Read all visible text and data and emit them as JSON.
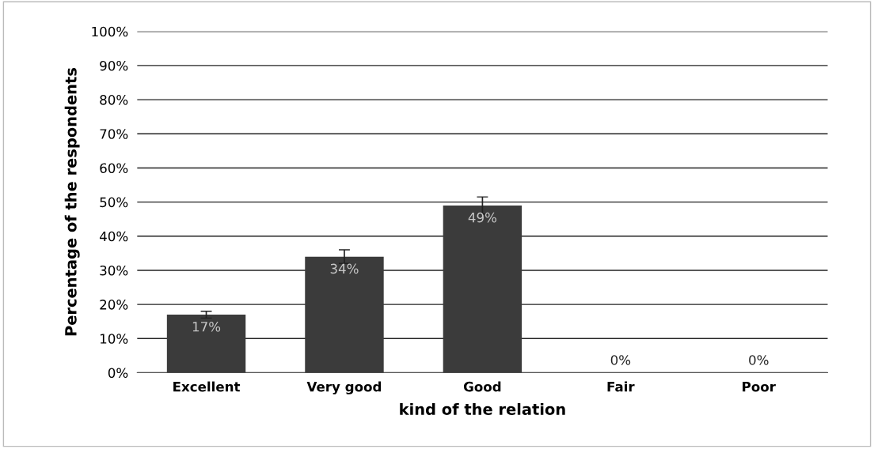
{
  "chart_data": {
    "type": "bar",
    "xlabel": "kind of the relation",
    "ylabel": "Percentage of the respondents",
    "categories": [
      "Excellent",
      "Very good",
      "Good",
      "Fair",
      "Poor"
    ],
    "values": [
      17,
      34,
      49,
      0,
      0
    ],
    "errors": [
      1,
      2,
      2.5,
      null,
      null
    ],
    "color": "#3b3b3b",
    "value_labels": [
      "17%",
      "34%",
      "49%",
      "0%",
      "0%"
    ],
    "ylim": [
      0,
      100
    ],
    "yticks": [
      {
        "value": 0,
        "label": "0%"
      },
      {
        "value": 10,
        "label": "10%"
      },
      {
        "value": 20,
        "label": "20%"
      },
      {
        "value": 30,
        "label": "30%"
      },
      {
        "value": 40,
        "label": "40%"
      },
      {
        "value": 50,
        "label": "50%"
      },
      {
        "value": 60,
        "label": "60%"
      },
      {
        "value": 70,
        "label": "70%"
      },
      {
        "value": 80,
        "label": "80%"
      },
      {
        "value": 90,
        "label": "90%"
      },
      {
        "value": 100,
        "label": "100%"
      }
    ],
    "grid": "y",
    "legend": false
  }
}
